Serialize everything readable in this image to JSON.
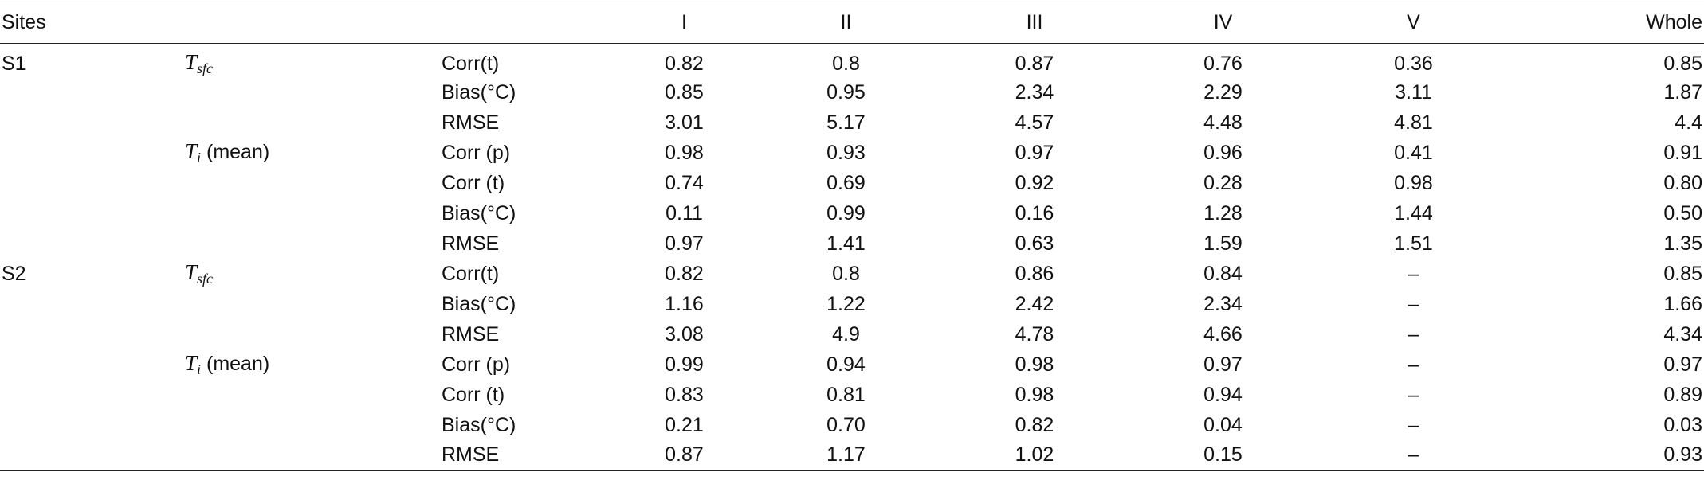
{
  "table": {
    "headers": [
      "Sites",
      "",
      "",
      "I",
      "II",
      "III",
      "IV",
      "V",
      "Whole"
    ],
    "rows": [
      {
        "site": "S1",
        "var_sym": "T",
        "var_sub": "sfc",
        "var_extra": "",
        "metric": "Corr(t)",
        "values": [
          "0.82",
          "0.8",
          "0.87",
          "0.76",
          "0.36",
          "0.85"
        ]
      },
      {
        "site": "",
        "var_sym": "",
        "var_sub": "",
        "var_extra": "",
        "metric": "Bias(°C)",
        "values": [
          "0.85",
          "0.95",
          "2.34",
          "2.29",
          "3.11",
          "1.87"
        ]
      },
      {
        "site": "",
        "var_sym": "",
        "var_sub": "",
        "var_extra": "",
        "metric": "RMSE",
        "values": [
          "3.01",
          "5.17",
          "4.57",
          "4.48",
          "4.81",
          "4.4"
        ]
      },
      {
        "site": "",
        "var_sym": "T",
        "var_sub": "i",
        "var_extra": " (mean)",
        "metric": "Corr (p)",
        "values": [
          "0.98",
          "0.93",
          "0.97",
          "0.96",
          "0.41",
          "0.91"
        ]
      },
      {
        "site": "",
        "var_sym": "",
        "var_sub": "",
        "var_extra": "",
        "metric": "Corr (t)",
        "values": [
          "0.74",
          "0.69",
          "0.92",
          "0.28",
          "0.98",
          "0.80"
        ]
      },
      {
        "site": "",
        "var_sym": "",
        "var_sub": "",
        "var_extra": "",
        "metric": "Bias(°C)",
        "values": [
          "0.11",
          "0.99",
          "0.16",
          "1.28",
          "1.44",
          "0.50"
        ]
      },
      {
        "site": "",
        "var_sym": "",
        "var_sub": "",
        "var_extra": "",
        "metric": "RMSE",
        "values": [
          "0.97",
          "1.41",
          "0.63",
          "1.59",
          "1.51",
          "1.35"
        ]
      },
      {
        "site": "S2",
        "var_sym": "T",
        "var_sub": "sfc",
        "var_extra": "",
        "metric": "Corr(t)",
        "values": [
          "0.82",
          "0.8",
          "0.86",
          "0.84",
          "–",
          "0.85"
        ]
      },
      {
        "site": "",
        "var_sym": "",
        "var_sub": "",
        "var_extra": "",
        "metric": "Bias(°C)",
        "values": [
          "1.16",
          "1.22",
          "2.42",
          "2.34",
          "–",
          "1.66"
        ]
      },
      {
        "site": "",
        "var_sym": "",
        "var_sub": "",
        "var_extra": "",
        "metric": "RMSE",
        "values": [
          "3.08",
          "4.9",
          "4.78",
          "4.66",
          "–",
          "4.34"
        ]
      },
      {
        "site": "",
        "var_sym": "T",
        "var_sub": "i",
        "var_extra": " (mean)",
        "metric": "Corr (p)",
        "values": [
          "0.99",
          "0.94",
          "0.98",
          "0.97",
          "–",
          "0.97"
        ]
      },
      {
        "site": "",
        "var_sym": "",
        "var_sub": "",
        "var_extra": "",
        "metric": "Corr (t)",
        "values": [
          "0.83",
          "0.81",
          "0.98",
          "0.94",
          "–",
          "0.89"
        ]
      },
      {
        "site": "",
        "var_sym": "",
        "var_sub": "",
        "var_extra": "",
        "metric": "Bias(°C)",
        "values": [
          "0.21",
          "0.70",
          "0.82",
          "0.04",
          "–",
          "0.03"
        ]
      },
      {
        "site": "",
        "var_sym": "",
        "var_sub": "",
        "var_extra": "",
        "metric": "RMSE",
        "values": [
          "0.87",
          "1.17",
          "1.02",
          "0.15",
          "–",
          "0.93"
        ]
      }
    ]
  }
}
